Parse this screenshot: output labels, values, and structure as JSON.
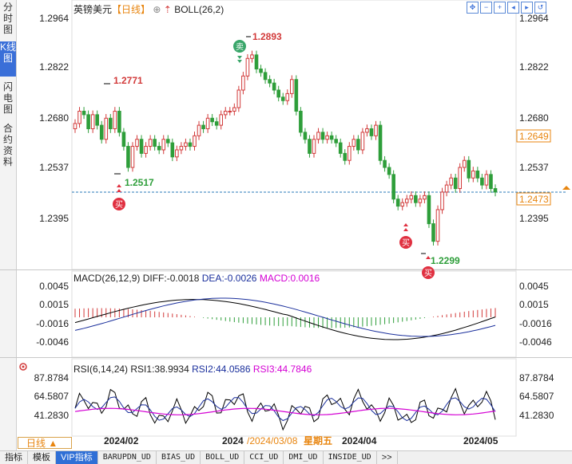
{
  "left_tabs": [
    {
      "label": "分时图",
      "active": false
    },
    {
      "label": "K线图",
      "active": true
    },
    {
      "label": "闪电图",
      "active": false
    },
    {
      "label": "合约资料",
      "active": false
    }
  ],
  "header": {
    "symbol": "英镑美元",
    "period": "【日线】",
    "indicator": "BOLL(26,2)"
  },
  "price_axis": {
    "ticks": [
      "1.2964",
      "1.2822",
      "1.2680",
      "1.2537",
      "1.2395"
    ]
  },
  "price_tags": {
    "right_high": "1.2649",
    "current": "1.2473"
  },
  "annotations": {
    "high1": "1.2771",
    "high2": "1.2893",
    "low1": "1.2517",
    "low2": "1.2299",
    "sell": "卖",
    "buy": "买"
  },
  "macd": {
    "title": "MACD(26,12,9)",
    "diff": "DIFF:-0.0018",
    "dea": "DEA:-0.0026",
    "macd": "MACD:0.0016",
    "ticks": [
      "0.0045",
      "0.0015",
      "-0.0016",
      "-0.0046"
    ]
  },
  "rsi": {
    "title": "RSI(6,14,24)",
    "rsi1": "RSI1:38.9934",
    "rsi2": "RSI2:44.0586",
    "rsi3": "RSI3:44.7846",
    "ticks": [
      "87.8784",
      "64.5807",
      "41.2830"
    ]
  },
  "time_axis": {
    "labels": [
      "2024/02",
      "2024",
      "2024/04",
      "2024/05"
    ],
    "cursor_date": "/2024/03/08",
    "cursor_weekday": "星期五"
  },
  "period_button": "日线 ▲",
  "bottom_tabs": [
    {
      "label": "指标",
      "active": false
    },
    {
      "label": "模板",
      "active": false
    },
    {
      "label": "VIP指标",
      "active": true
    },
    {
      "label": "BARUPDN_UD",
      "active": false
    },
    {
      "label": "BIAS_UD",
      "active": false
    },
    {
      "label": "BOLL_UD",
      "active": false
    },
    {
      "label": "CCI_UD",
      "active": false
    },
    {
      "label": "DMI_UD",
      "active": false
    },
    {
      "label": "INSIDE_UD",
      "active": false
    },
    {
      "label": ">>",
      "active": false
    }
  ],
  "colors": {
    "up": "#d23a3a",
    "down": "#2e9e3a",
    "diff": "#000000",
    "dea": "#1a2f9c",
    "macd": "#d400d4",
    "cursor": "#e8850f"
  }
}
